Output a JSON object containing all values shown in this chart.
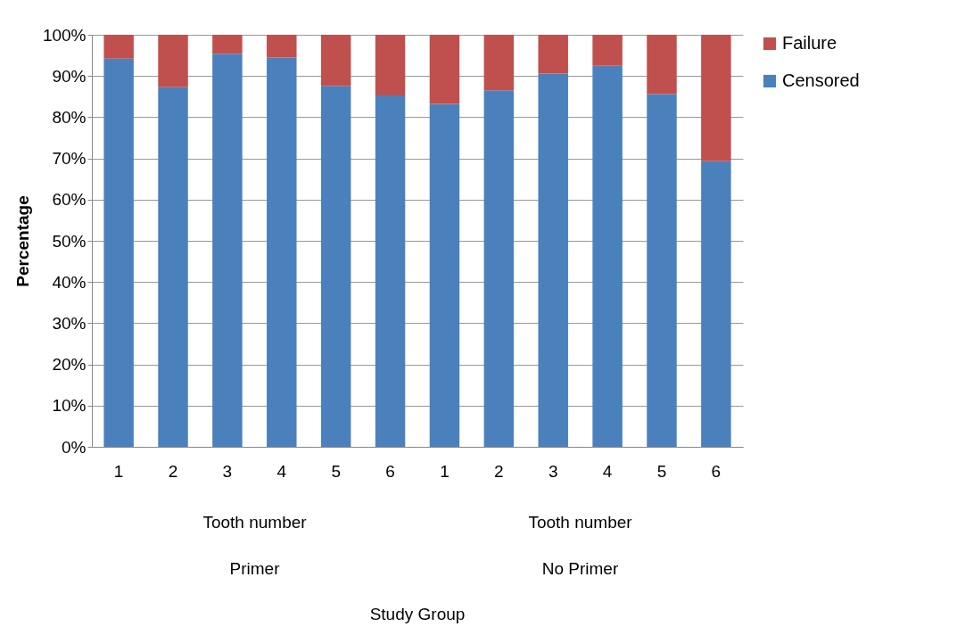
{
  "chart_data": {
    "type": "bar",
    "stacked": true,
    "ylabel": "Percentage",
    "categories": [
      "1",
      "2",
      "3",
      "4",
      "5",
      "6",
      "1",
      "2",
      "3",
      "4",
      "5",
      "6"
    ],
    "series": [
      {
        "name": "Censored",
        "color": "#4a81bd",
        "values": [
          94.2,
          87.3,
          95.4,
          94.5,
          87.6,
          85.3,
          83.2,
          86.5,
          90.6,
          92.5,
          85.6,
          69.3
        ]
      },
      {
        "name": "Failure",
        "color": "#c0504d",
        "values": [
          5.8,
          12.7,
          4.6,
          5.5,
          12.4,
          14.7,
          16.8,
          13.5,
          9.4,
          7.5,
          14.4,
          30.7
        ]
      }
    ],
    "ylim": [
      0,
      100
    ],
    "yticks": [
      {
        "value": 0,
        "label": "0%"
      },
      {
        "value": 10,
        "label": "10%"
      },
      {
        "value": 20,
        "label": "20%"
      },
      {
        "value": 30,
        "label": "30%"
      },
      {
        "value": 40,
        "label": "40%"
      },
      {
        "value": 50,
        "label": "50%"
      },
      {
        "value": 60,
        "label": "60%"
      },
      {
        "value": 70,
        "label": "70%"
      },
      {
        "value": 80,
        "label": "80%"
      },
      {
        "value": 90,
        "label": "90%"
      },
      {
        "value": 100,
        "label": "100%"
      }
    ],
    "grid": "y",
    "legend": "right",
    "annotations": [
      "Tooth number",
      "Tooth number",
      "Primer",
      "No Primer",
      "Study Group"
    ]
  }
}
